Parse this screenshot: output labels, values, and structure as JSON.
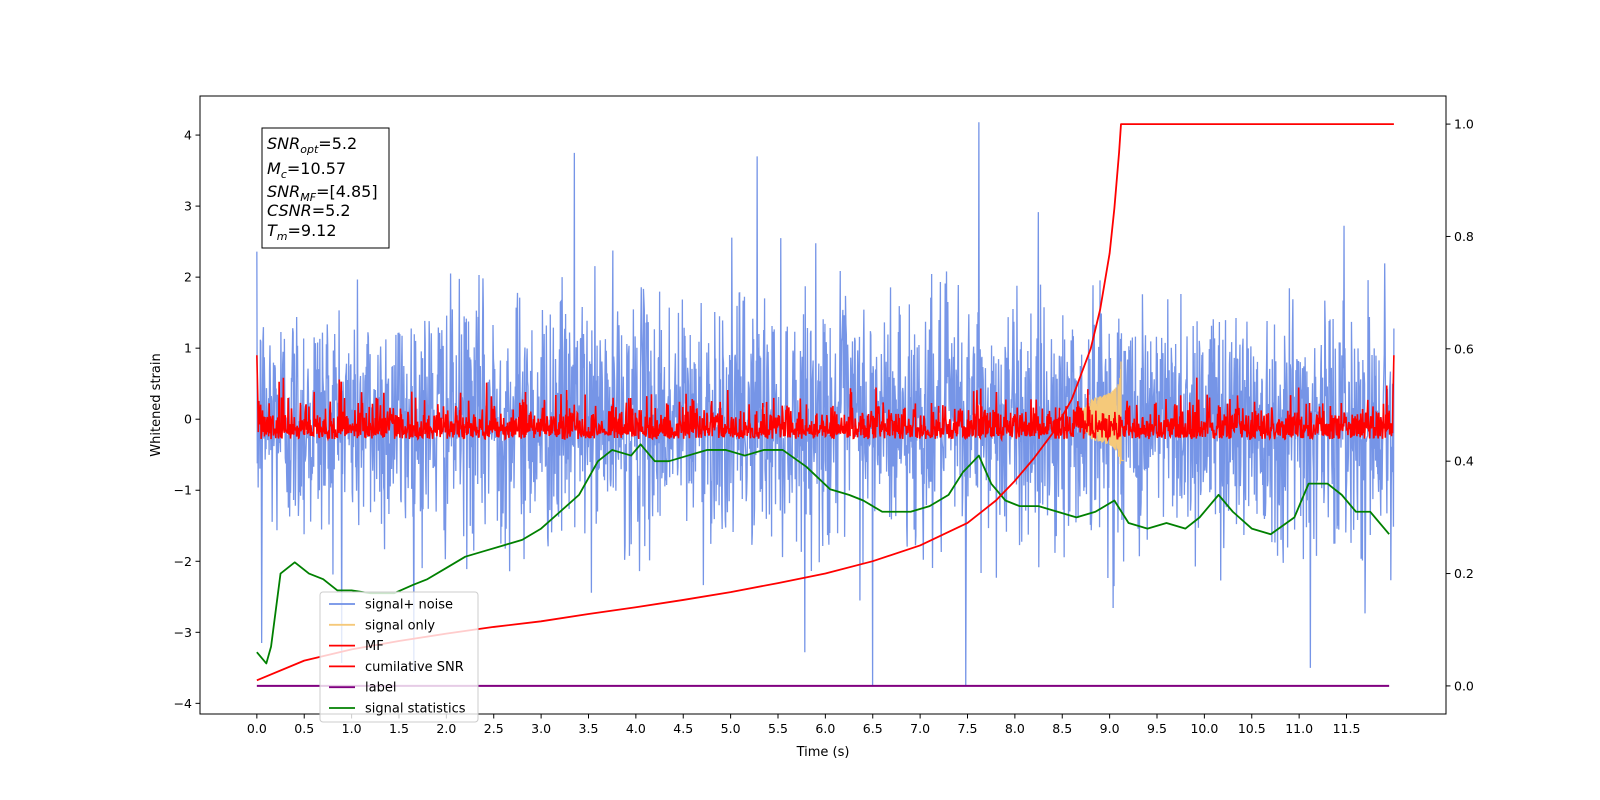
{
  "chart_data": {
    "type": "line",
    "xlabel": "Time (s)",
    "ylabel": "Whitened strain",
    "xlim": [
      -0.6,
      12.55
    ],
    "ylim": [
      -4.15,
      4.55
    ],
    "y2lim": [
      -0.05,
      1.05
    ],
    "x_ticks": [
      0.0,
      0.5,
      1.0,
      1.5,
      2.0,
      2.5,
      3.0,
      3.5,
      4.0,
      4.5,
      5.0,
      5.5,
      6.0,
      6.5,
      7.0,
      7.5,
      8.0,
      8.5,
      9.0,
      9.5,
      10.0,
      10.5,
      11.0,
      11.5
    ],
    "x_tick_labels": [
      "0.0",
      "0.5",
      "1.0",
      "1.5",
      "2.0",
      "2.5",
      "3.0",
      "3.5",
      "4.0",
      "4.5",
      "5.0",
      "5.5",
      "6.0",
      "6.5",
      "7.0",
      "7.5",
      "8.0",
      "8.5",
      "9.0",
      "9.5",
      "10.0",
      "10.5",
      "11.0",
      "11.5"
    ],
    "y_ticks": [
      -4,
      -3,
      -2,
      -1,
      0,
      1,
      2,
      3,
      4
    ],
    "y_tick_labels": [
      "−4",
      "−3",
      "−2",
      "−1",
      "0",
      "1",
      "2",
      "3",
      "4"
    ],
    "y2_ticks": [
      0.0,
      0.2,
      0.4,
      0.6,
      0.8,
      1.0
    ],
    "y2_tick_labels": [
      "0.0",
      "0.2",
      "0.4",
      "0.6",
      "0.8",
      "1.0"
    ],
    "legend_position": "lower-left",
    "grid": false,
    "colors": {
      "signal_noise": "#6f8fe6",
      "signal_only": "#f5c97a",
      "mf": "#ff0000",
      "cumulative_snr": "#ff0000",
      "label": "#800080",
      "signal_statistics": "#008000"
    },
    "legend": [
      {
        "name": "signal+ noise",
        "color": "#6f8fe6"
      },
      {
        "name": "signal only",
        "color": "#f5c97a"
      },
      {
        "name": "MF",
        "color": "#ff0000"
      },
      {
        "name": "cumilative SNR",
        "color": "#ff0000"
      },
      {
        "name": "label",
        "color": "#800080"
      },
      {
        "name": "signal statistics",
        "color": "#008000"
      }
    ],
    "annotation": {
      "snr_opt": {
        "main": "SNR",
        "sub": "opt",
        "value": "=5.2"
      },
      "mc": {
        "main": "M",
        "sub": "c",
        "value": "=10.57"
      },
      "snr_mf": {
        "main": "SNR",
        "sub": "MF",
        "value": "=[4.85]"
      },
      "csnr": {
        "main": "CSNR",
        "sub": "",
        "value": "=5.2"
      },
      "tm": {
        "main": "T",
        "sub": "m",
        "value": "=9.12"
      }
    },
    "series": [
      {
        "name": "signal+ noise",
        "axis": "left",
        "t_range": [
          0.0,
          12.0
        ],
        "noise_sigma": 0.85,
        "range": [
          -3.75,
          4.18
        ],
        "notable_extremes": [
          {
            "x": 7.62,
            "y": 4.18
          },
          {
            "x": 3.35,
            "y": 3.75
          },
          {
            "x": 5.28,
            "y": 3.7
          },
          {
            "x": 6.5,
            "y": -3.75
          },
          {
            "x": 7.48,
            "y": -3.75
          },
          {
            "x": 11.12,
            "y": -3.5
          },
          {
            "x": 0.05,
            "y": -3.15
          }
        ]
      },
      {
        "name": "signal only",
        "axis": "left",
        "chirp_peak_time": 9.12,
        "chirp_amplitude": 0.7
      },
      {
        "name": "MF",
        "axis": "left",
        "t_range": [
          0.0,
          12.0
        ],
        "range": [
          -0.35,
          0.9
        ],
        "baseline": -0.28
      },
      {
        "name": "cumilative SNR",
        "axis": "right",
        "x": [
          0.0,
          0.5,
          1.0,
          1.5,
          2.0,
          2.5,
          3.0,
          3.5,
          4.0,
          4.5,
          5.0,
          5.5,
          6.0,
          6.5,
          7.0,
          7.5,
          7.8,
          8.0,
          8.2,
          8.4,
          8.6,
          8.8,
          8.9,
          9.0,
          9.05,
          9.1,
          9.12,
          12.0
        ],
        "y": [
          0.01,
          0.045,
          0.065,
          0.08,
          0.093,
          0.105,
          0.115,
          0.128,
          0.14,
          0.153,
          0.167,
          0.183,
          0.2,
          0.222,
          0.25,
          0.29,
          0.33,
          0.365,
          0.405,
          0.45,
          0.51,
          0.6,
          0.67,
          0.77,
          0.85,
          0.95,
          1.0,
          1.0
        ]
      },
      {
        "name": "label",
        "axis": "right",
        "x": [
          0.0,
          11.95
        ],
        "y": [
          0.0,
          0.0
        ]
      },
      {
        "name": "signal statistics",
        "axis": "right",
        "x": [
          0.0,
          0.1,
          0.15,
          0.25,
          0.4,
          0.55,
          0.7,
          0.85,
          1.0,
          1.2,
          1.45,
          1.65,
          1.8,
          2.0,
          2.2,
          2.4,
          2.6,
          2.8,
          3.0,
          3.2,
          3.4,
          3.6,
          3.75,
          3.95,
          4.05,
          4.2,
          4.35,
          4.55,
          4.75,
          4.95,
          5.15,
          5.35,
          5.55,
          5.8,
          6.05,
          6.25,
          6.4,
          6.6,
          6.75,
          6.9,
          7.1,
          7.3,
          7.45,
          7.62,
          7.75,
          7.9,
          8.05,
          8.25,
          8.45,
          8.65,
          8.85,
          9.05,
          9.2,
          9.4,
          9.6,
          9.8,
          9.95,
          10.15,
          10.3,
          10.5,
          10.7,
          10.95,
          11.1,
          11.3,
          11.45,
          11.6,
          11.75,
          11.95
        ],
        "y": [
          0.06,
          0.04,
          0.07,
          0.2,
          0.22,
          0.2,
          0.19,
          0.17,
          0.17,
          0.165,
          0.165,
          0.18,
          0.19,
          0.21,
          0.23,
          0.24,
          0.25,
          0.26,
          0.28,
          0.31,
          0.34,
          0.4,
          0.42,
          0.41,
          0.43,
          0.4,
          0.4,
          0.41,
          0.42,
          0.42,
          0.41,
          0.42,
          0.42,
          0.39,
          0.35,
          0.34,
          0.33,
          0.31,
          0.31,
          0.31,
          0.32,
          0.34,
          0.38,
          0.41,
          0.36,
          0.33,
          0.32,
          0.32,
          0.31,
          0.3,
          0.31,
          0.33,
          0.29,
          0.28,
          0.29,
          0.28,
          0.3,
          0.34,
          0.31,
          0.28,
          0.27,
          0.3,
          0.36,
          0.36,
          0.34,
          0.31,
          0.31,
          0.27
        ]
      }
    ]
  }
}
